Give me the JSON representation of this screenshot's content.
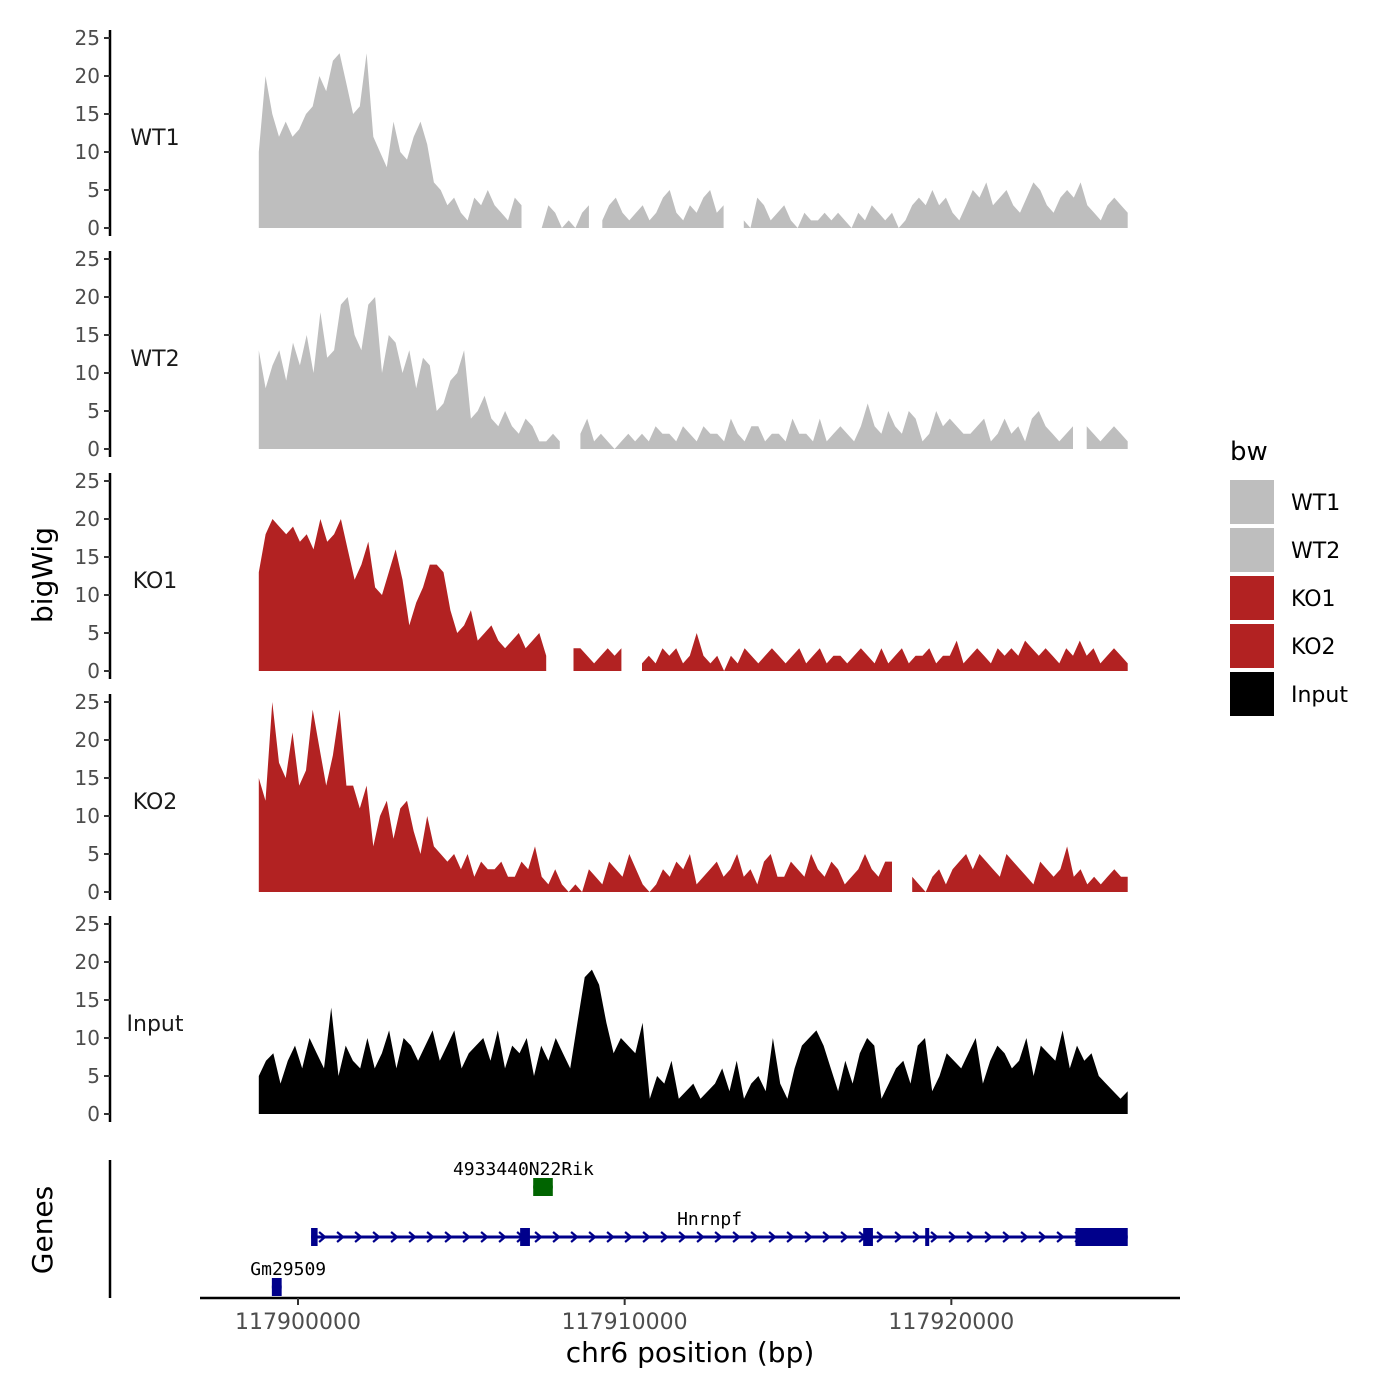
{
  "chart_data": {
    "type": "area",
    "title": "",
    "xlabel": "chr6 position (bp)",
    "ylabel": "bigWig",
    "genes_label": "Genes",
    "xlim": [
      117897000,
      117927000
    ],
    "xticks": [
      117900000,
      117910000,
      117920000
    ],
    "xtick_labels": [
      "117900000",
      "117910000",
      "117920000"
    ],
    "ylim": [
      0,
      25
    ],
    "yticks": [
      0,
      5,
      10,
      15,
      20,
      25
    ],
    "ytick_labels": [
      "0",
      "5",
      "10",
      "15",
      "20",
      "25"
    ],
    "data_range": [
      117898800,
      117925400
    ],
    "legend": {
      "title": "bw",
      "position": "right",
      "entries": [
        {
          "name": "WT1",
          "color": "#bebebe"
        },
        {
          "name": "WT2",
          "color": "#bebebe"
        },
        {
          "name": "KO1",
          "color": "#b22222"
        },
        {
          "name": "KO2",
          "color": "#b22222"
        },
        {
          "name": "Input",
          "color": "#000000"
        }
      ]
    },
    "series": [
      {
        "name": "WT1",
        "color": "#bebebe",
        "values": [
          10,
          20,
          15,
          12,
          14,
          12,
          13,
          15,
          16,
          20,
          18,
          22,
          23,
          19,
          15,
          16,
          23,
          12,
          10,
          8,
          14,
          10,
          9,
          12,
          14,
          11,
          6,
          5,
          3,
          4,
          2,
          1,
          4,
          3,
          5,
          3,
          2,
          1,
          4,
          3,
          2,
          1,
          0,
          3,
          2,
          0,
          1,
          0,
          2,
          3,
          2,
          1,
          3,
          4,
          2,
          1,
          2,
          3,
          1,
          2,
          4,
          5,
          2,
          1,
          3,
          2,
          4,
          5,
          2,
          3,
          4,
          3,
          1,
          0,
          4,
          3,
          1,
          2,
          3,
          1,
          0,
          2,
          1,
          1,
          2,
          1,
          2,
          1,
          0,
          2,
          1,
          3,
          2,
          1,
          2,
          0,
          1,
          3,
          4,
          3,
          5,
          3,
          4,
          2,
          1,
          3,
          5,
          4,
          6,
          3,
          4,
          5,
          3,
          2,
          4,
          6,
          5,
          3,
          2,
          4,
          5,
          4,
          6,
          3,
          2,
          1,
          3,
          4,
          3,
          2
        ],
        "gaps": [
          [
            117906900,
            117907400
          ],
          [
            117909000,
            117909300
          ],
          [
            117913100,
            117913500
          ]
        ]
      },
      {
        "name": "WT2",
        "color": "#bebebe",
        "values": [
          13,
          8,
          11,
          13,
          9,
          14,
          11,
          15,
          10,
          18,
          12,
          13,
          19,
          20,
          15,
          13,
          19,
          20,
          10,
          15,
          14,
          10,
          13,
          8,
          12,
          11,
          5,
          6,
          9,
          10,
          13,
          4,
          5,
          7,
          4,
          3,
          5,
          3,
          2,
          4,
          3,
          1,
          1,
          2,
          1,
          3,
          3,
          2,
          4,
          1,
          2,
          1,
          0,
          1,
          2,
          1,
          2,
          1,
          3,
          2,
          2,
          1,
          3,
          2,
          1,
          3,
          2,
          2,
          1,
          4,
          2,
          1,
          3,
          3,
          1,
          2,
          2,
          1,
          4,
          2,
          2,
          1,
          4,
          1,
          2,
          3,
          2,
          1,
          3,
          6,
          3,
          2,
          5,
          3,
          2,
          5,
          4,
          1,
          2,
          5,
          3,
          4,
          3,
          2,
          2,
          3,
          4,
          1,
          2,
          4,
          2,
          3,
          1,
          4,
          5,
          3,
          2,
          1,
          2,
          3,
          6,
          3,
          2,
          1,
          2,
          3,
          2,
          1
        ],
        "gaps": [
          [
            117908200,
            117908500
          ],
          [
            117923800,
            117924000
          ]
        ]
      },
      {
        "name": "KO1",
        "color": "#b22222",
        "values": [
          13,
          18,
          20,
          19,
          18,
          19,
          17,
          18,
          16,
          20,
          17,
          18,
          20,
          16,
          12,
          14,
          17,
          11,
          10,
          13,
          16,
          12,
          6,
          9,
          11,
          14,
          14,
          13,
          8,
          5,
          6,
          8,
          4,
          5,
          6,
          4,
          3,
          4,
          5,
          3,
          4,
          5,
          2,
          4,
          3,
          2,
          3,
          3,
          2,
          1,
          2,
          3,
          2,
          3,
          3,
          2,
          1,
          2,
          1,
          3,
          2,
          3,
          1,
          2,
          5,
          2,
          1,
          2,
          0,
          2,
          1,
          3,
          2,
          1,
          2,
          3,
          2,
          1,
          2,
          3,
          1,
          2,
          3,
          1,
          2,
          2,
          1,
          2,
          3,
          2,
          1,
          3,
          1,
          2,
          3,
          1,
          2,
          2,
          3,
          1,
          2,
          2,
          4,
          1,
          2,
          3,
          2,
          1,
          3,
          2,
          3,
          2,
          4,
          3,
          2,
          3,
          2,
          1,
          3,
          2,
          4,
          2,
          3,
          1,
          2,
          3,
          2,
          1
        ],
        "gaps": [
          [
            117907600,
            117908400
          ],
          [
            117910100,
            117910400
          ]
        ]
      },
      {
        "name": "KO2",
        "color": "#b22222",
        "values": [
          15,
          12,
          25,
          17,
          15,
          21,
          14,
          16,
          24,
          19,
          14,
          18,
          24,
          14,
          14,
          11,
          14,
          6,
          10,
          12,
          7,
          11,
          12,
          8,
          5,
          10,
          6,
          5,
          4,
          5,
          3,
          5,
          2,
          4,
          3,
          3,
          4,
          2,
          2,
          4,
          3,
          6,
          2,
          1,
          3,
          1,
          0,
          1,
          0,
          3,
          2,
          1,
          4,
          3,
          2,
          5,
          3,
          1,
          0,
          1,
          3,
          2,
          4,
          3,
          5,
          1,
          2,
          3,
          4,
          2,
          3,
          5,
          2,
          3,
          1,
          4,
          5,
          2,
          2,
          4,
          3,
          2,
          5,
          3,
          2,
          4,
          3,
          1,
          2,
          3,
          5,
          3,
          2,
          4,
          4,
          3,
          1,
          2,
          1,
          0,
          2,
          3,
          1,
          3,
          4,
          5,
          3,
          5,
          4,
          3,
          2,
          5,
          4,
          3,
          2,
          1,
          4,
          3,
          2,
          3,
          6,
          2,
          3,
          1,
          2,
          1,
          2,
          3,
          2,
          2
        ],
        "gaps": [
          [
            117918300,
            117918800
          ]
        ]
      },
      {
        "name": "Input",
        "color": "#000000",
        "values": [
          5,
          7,
          8,
          4,
          7,
          9,
          6,
          10,
          8,
          6,
          14,
          5,
          9,
          7,
          6,
          10,
          6,
          8,
          11,
          6,
          10,
          9,
          7,
          9,
          11,
          7,
          9,
          11,
          6,
          8,
          9,
          10,
          7,
          11,
          6,
          9,
          8,
          10,
          5,
          9,
          7,
          10,
          8,
          6,
          12,
          18,
          19,
          17,
          12,
          8,
          10,
          9,
          8,
          12,
          2,
          5,
          4,
          7,
          2,
          3,
          4,
          2,
          3,
          4,
          6,
          3,
          7,
          2,
          4,
          5,
          3,
          10,
          4,
          2,
          6,
          9,
          10,
          11,
          9,
          6,
          3,
          7,
          4,
          8,
          10,
          9,
          2,
          4,
          6,
          7,
          4,
          9,
          10,
          3,
          5,
          8,
          7,
          6,
          8,
          10,
          4,
          7,
          9,
          8,
          6,
          7,
          10,
          5,
          9,
          8,
          7,
          11,
          6,
          9,
          7,
          8,
          5,
          4,
          3,
          2,
          3
        ]
      }
    ],
    "genes": [
      {
        "name": "4933440N22Rik",
        "color": "#006400",
        "start": 117907200,
        "end": 117907800,
        "row": 0,
        "strand": "-",
        "label_x": 117906900
      },
      {
        "name": "Hnrnpf",
        "color": "#00008b",
        "start": 117900400,
        "end": 117925400,
        "row": 1,
        "strand": "+",
        "label_x": 117912600,
        "exons": [
          [
            117900400,
            117900600
          ],
          [
            117906800,
            117907100
          ],
          [
            117917300,
            117917600
          ],
          [
            117919200,
            117919300
          ],
          [
            117923800,
            117925400
          ]
        ]
      },
      {
        "name": "Gm29509",
        "color": "#00008b",
        "start": 117899200,
        "end": 117899500,
        "row": 2,
        "strand": "+",
        "label_x": 117899700
      }
    ]
  }
}
